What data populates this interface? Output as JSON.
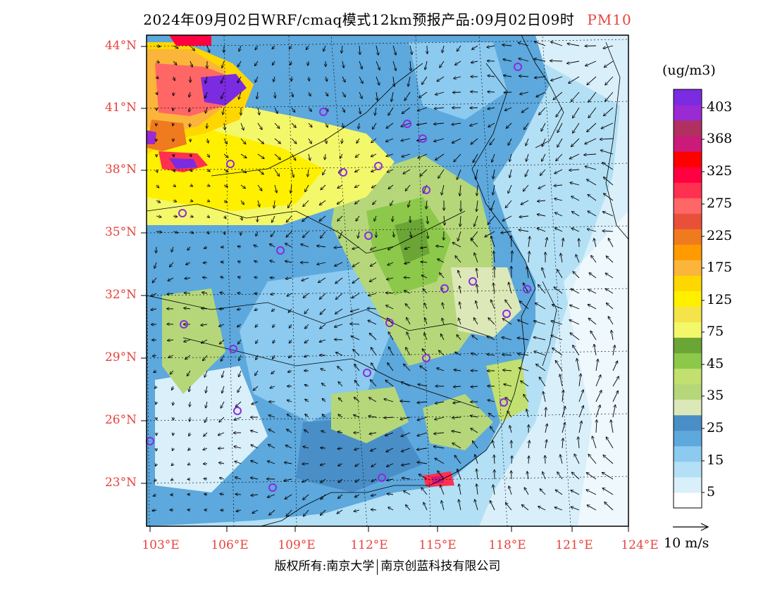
{
  "title": {
    "main": "2024年09月02日WRF/cmaq模式12km预报产品:09月02日09时",
    "variable": "PM10",
    "variable_color": "#e8423c"
  },
  "map": {
    "latitude_labels": [
      "44°N",
      "41°N",
      "38°N",
      "35°N",
      "32°N",
      "29°N",
      "26°N",
      "23°N"
    ],
    "longitude_labels": [
      "103°E",
      "106°E",
      "109°E",
      "112°E",
      "115°E",
      "118°E",
      "121°E",
      "124°E"
    ],
    "label_color": "#e8423c",
    "station_marker_color": "#8a2be2"
  },
  "colorbar": {
    "unit": "(ug/m3)",
    "labels": [
      "403",
      "368",
      "325",
      "275",
      "225",
      "175",
      "125",
      "75",
      "45",
      "35",
      "25",
      "15",
      "5"
    ],
    "colors": [
      "#ffffff",
      "#d9effa",
      "#b3e0f5",
      "#8ccaf0",
      "#5da8dc",
      "#4a8ec8",
      "#dde8b8",
      "#b5d77a",
      "#c2e070",
      "#8cc84a",
      "#6aa536",
      "#f3f76a",
      "#f5e34a",
      "#fff000",
      "#ffd700",
      "#fbb53a",
      "#ff9a00",
      "#f07a1e",
      "#e8503a",
      "#ff6666",
      "#ff3050",
      "#ff0040",
      "#ff0000",
      "#cc1a7a",
      "#b03060",
      "#9a2ad2",
      "#7b2be0"
    ]
  },
  "vector_legend": {
    "label": "10 m/s"
  },
  "footer": {
    "copyright_left": "版权所有:南京大学",
    "copyright_right": "南京创蓝科技有限公司"
  }
}
